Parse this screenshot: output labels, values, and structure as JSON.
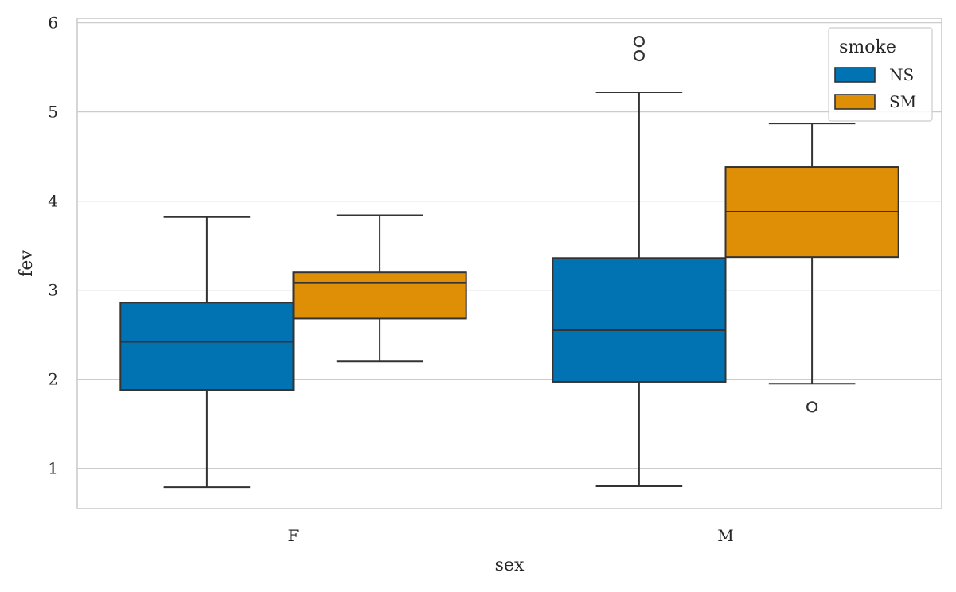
{
  "chart_data": {
    "type": "box",
    "xlabel": "sex",
    "ylabel": "fev",
    "categories": [
      "F",
      "M"
    ],
    "ylim": [
      0.55,
      6.05
    ],
    "yticks": [
      1,
      2,
      3,
      4,
      5,
      6
    ],
    "grid": true,
    "legend": {
      "title": "smoke",
      "placement": "top-right"
    },
    "series": [
      {
        "name": "NS",
        "color": "#0173b2",
        "boxes": [
          {
            "category": "F",
            "whisker_low": 0.79,
            "q1": 1.88,
            "median": 2.42,
            "q3": 2.86,
            "whisker_high": 3.82,
            "outliers": []
          },
          {
            "category": "M",
            "whisker_low": 0.8,
            "q1": 1.97,
            "median": 2.55,
            "q3": 3.36,
            "whisker_high": 5.22,
            "outliers": [
              5.63,
              5.79
            ]
          }
        ]
      },
      {
        "name": "SM",
        "color": "#de8f05",
        "boxes": [
          {
            "category": "F",
            "whisker_low": 2.2,
            "q1": 2.68,
            "median": 3.08,
            "q3": 3.2,
            "whisker_high": 3.84,
            "outliers": []
          },
          {
            "category": "M",
            "whisker_low": 1.95,
            "q1": 3.37,
            "median": 3.88,
            "q3": 4.38,
            "whisker_high": 4.87,
            "outliers": [
              1.69
            ]
          }
        ]
      }
    ]
  }
}
